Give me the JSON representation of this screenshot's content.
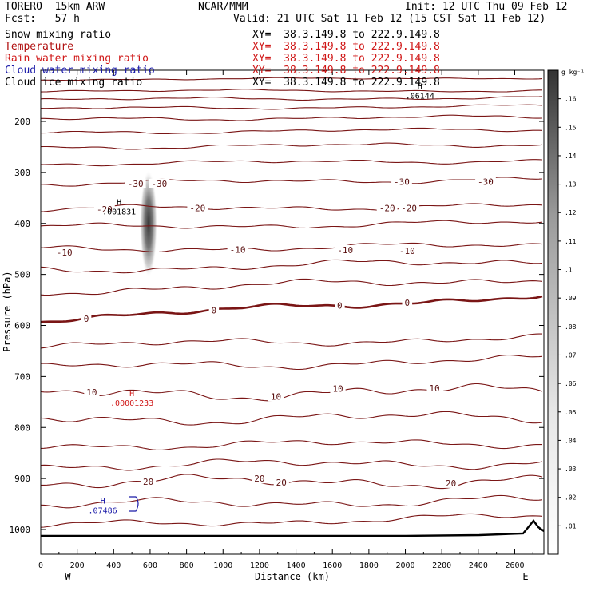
{
  "header": {
    "model": "TORERO  15km ARW",
    "org": "NCAR/MMM",
    "init": "Init: 12 UTC Thu 09 Feb 12",
    "forecast": "Fcst:   57 h",
    "valid": "Valid: 21 UTC Sat 11 Feb 12 (15 CST Sat 11 Feb 12)"
  },
  "legend": [
    {
      "name": "Snow mixing ratio",
      "color": "#000000",
      "xy": "XY=  38.3.149.8 to 222.9.149.8"
    },
    {
      "name": "Temperature",
      "color": "#b01010",
      "xy": "XY=  38.3.149.8 to 222.9.149.8"
    },
    {
      "name": "Rain water mixing ratio",
      "color": "#d01818",
      "xy": "XY=  38.3.149.8 to 222.9.149.8"
    },
    {
      "name": "Cloud water mixing ratio",
      "color": "#1a1aa8",
      "xy": "XY=  38.3.149.8 to 222.9.149.8"
    },
    {
      "name": "Cloud ice mixing ratio",
      "color": "#000000",
      "xy": "XY=  38.3.149.8 to 222.9.149.8"
    }
  ],
  "colors": {
    "temperature": "#7a1515",
    "temperature_zero": "#7a1515",
    "rain": "#d01818",
    "cloud_water": "#1a1aa8",
    "ground": "#000000",
    "shading_max": "#3a3a3a"
  },
  "chart_data": {
    "type": "contour",
    "xlabel": "Distance (km)",
    "ylabel": "Pressure (hPa)",
    "xlim": [
      0,
      2760
    ],
    "ylim": [
      1050,
      125
    ],
    "x_ticks": [
      0,
      200,
      400,
      600,
      800,
      1000,
      1200,
      1400,
      1600,
      1800,
      2000,
      2200,
      2400,
      2600
    ],
    "y_ticks": [
      200,
      300,
      400,
      500,
      600,
      700,
      800,
      900,
      1000
    ],
    "x_end_labels": {
      "left": "W",
      "right": "E"
    },
    "colorbar": {
      "unit": "g kg⁻¹",
      "ticks": [
        ".01",
        ".02",
        ".03",
        ".04",
        ".05",
        ".06",
        ".07",
        ".08",
        ".09",
        ".1",
        ".11",
        ".12",
        ".13",
        ".14",
        ".15",
        ".16"
      ],
      "range": [
        0,
        0.17
      ]
    },
    "isotherms_celsius": [
      -30,
      -20,
      -10,
      0,
      10,
      20
    ],
    "temperature_labels": [
      {
        "text": "-30",
        "x": 520,
        "p": 322
      },
      {
        "text": "-30",
        "x": 650,
        "p": 322
      },
      {
        "text": "-30",
        "x": 1980,
        "p": 318
      },
      {
        "text": "-30",
        "x": 2440,
        "p": 318
      },
      {
        "text": "-20",
        "x": 350,
        "p": 372
      },
      {
        "text": "-20",
        "x": 860,
        "p": 370
      },
      {
        "text": "-20",
        "x": 1900,
        "p": 370
      },
      {
        "text": "-20",
        "x": 2020,
        "p": 370
      },
      {
        "text": "-10",
        "x": 130,
        "p": 457
      },
      {
        "text": "-10",
        "x": 1080,
        "p": 451
      },
      {
        "text": "-10",
        "x": 1670,
        "p": 452
      },
      {
        "text": "-10",
        "x": 2010,
        "p": 454
      },
      {
        "text": "0",
        "x": 250,
        "p": 587
      },
      {
        "text": "0",
        "x": 950,
        "p": 570
      },
      {
        "text": "0",
        "x": 1640,
        "p": 561
      },
      {
        "text": "0",
        "x": 2010,
        "p": 555
      },
      {
        "text": "10",
        "x": 280,
        "p": 731
      },
      {
        "text": "10",
        "x": 1290,
        "p": 739
      },
      {
        "text": "10",
        "x": 1630,
        "p": 724
      },
      {
        "text": "10",
        "x": 2160,
        "p": 723
      },
      {
        "text": "20",
        "x": 590,
        "p": 906
      },
      {
        "text": "20",
        "x": 1200,
        "p": 900
      },
      {
        "text": "20",
        "x": 1320,
        "p": 908
      },
      {
        "text": "20",
        "x": 2250,
        "p": 909
      }
    ],
    "extrema": [
      {
        "marker": "H",
        "value": ".001831",
        "x": 430,
        "p": 370,
        "color": "#000000"
      },
      {
        "marker": "H",
        "value": ".00001233",
        "x": 500,
        "p": 745,
        "color": "#d01818"
      },
      {
        "marker": "H",
        "value": ".07486",
        "x": 340,
        "p": 955,
        "color": "#1a1aa8"
      },
      {
        "marker": "H",
        "value": ".06144",
        "x": 2080,
        "p": 143,
        "color": "#000000"
      }
    ],
    "snow_maximum": {
      "x": 600,
      "p": 405,
      "value": 0.12
    }
  }
}
